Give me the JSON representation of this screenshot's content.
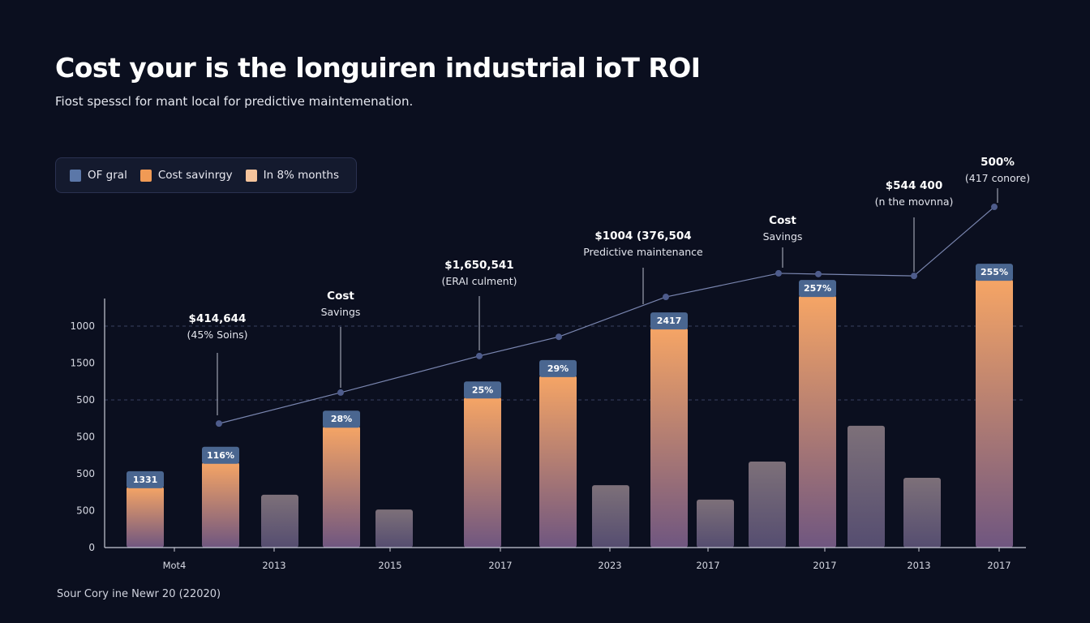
{
  "title": "Cost your is the longuiren industrial ioT ROI",
  "subtitle": "Fiost spesscl for mant local for predictive maintemenation.",
  "source": "Sour Cory ine Newr 20 (22020)",
  "legend": [
    {
      "label": "OF gral",
      "color": "#5b77a8"
    },
    {
      "label": "Cost savinrgy",
      "color": "#f09a55"
    },
    {
      "label": "In 8% months",
      "color": "#f5c49c"
    }
  ],
  "colors": {
    "background": "#0b0f1f",
    "orange_top": "#f6a565",
    "orange_bottom": "#6f5680",
    "gray_top": "#7d7079",
    "gray_bottom": "#554d70",
    "cap": "#4a6690",
    "line": "#7a86b0",
    "marker": "#4e5c8c"
  },
  "chart_data": {
    "type": "bar",
    "title": "Cost your is the longuiren industrial ioT ROI",
    "xlabel": "",
    "ylabel": "",
    "y_scale_note": "",
    "ylim": [
      0,
      9.5
    ],
    "y_ticks": [
      {
        "value": 0,
        "label": "0"
      },
      {
        "value": 1,
        "label": "500"
      },
      {
        "value": 2,
        "label": "500"
      },
      {
        "value": 3,
        "label": "500"
      },
      {
        "value": 4,
        "label": "500"
      },
      {
        "value": 5,
        "label": "1500"
      },
      {
        "value": 6,
        "label": "1000"
      }
    ],
    "grid_dashed_at": [
      4,
      6
    ],
    "x_tick_labels": [
      "Mot4",
      "2013",
      "2015",
      "2017",
      "2023",
      "2017",
      "2017",
      "2013",
      "2017"
    ],
    "bars": [
      {
        "kind": "orange",
        "value": 2.07,
        "label": "1331"
      },
      {
        "kind": "orange",
        "value": 2.73,
        "label": "116%"
      },
      {
        "kind": "gray",
        "value": 1.43
      },
      {
        "kind": "orange",
        "value": 3.71,
        "label": "28%"
      },
      {
        "kind": "gray",
        "value": 1.03
      },
      {
        "kind": "orange",
        "value": 4.5,
        "label": "25%"
      },
      {
        "kind": "orange",
        "value": 5.08,
        "label": "29%"
      },
      {
        "kind": "gray",
        "value": 1.69
      },
      {
        "kind": "orange",
        "value": 6.37,
        "label": "2417"
      },
      {
        "kind": "gray",
        "value": 1.3
      },
      {
        "kind": "gray",
        "value": 2.33
      },
      {
        "kind": "orange",
        "value": 7.25,
        "label": "257%"
      },
      {
        "kind": "gray",
        "value": 3.3
      },
      {
        "kind": "gray",
        "value": 1.89
      },
      {
        "kind": "orange",
        "value": 7.69,
        "label": "255%"
      }
    ],
    "line_series": {
      "values": [
        3.36,
        4.2,
        5.19,
        5.71,
        6.79,
        7.43,
        7.41,
        7.36,
        9.23
      ]
    },
    "annotations": [
      {
        "line1": "$414,644",
        "line2": "(45% Soins)"
      },
      {
        "line1": "Cost",
        "line2": "Savings"
      },
      {
        "line1": "$1,650,541",
        "line2": "(ERAI culment)"
      },
      {
        "line1": "$1004 (376,504",
        "line2": "Predictive maintenance"
      },
      {
        "line1": "Cost",
        "line2": "Savings"
      },
      {
        "line1": "$544 400",
        "line2": "(n the movnna)"
      },
      {
        "line1": "500%",
        "line2": "(417 conore)"
      }
    ]
  }
}
